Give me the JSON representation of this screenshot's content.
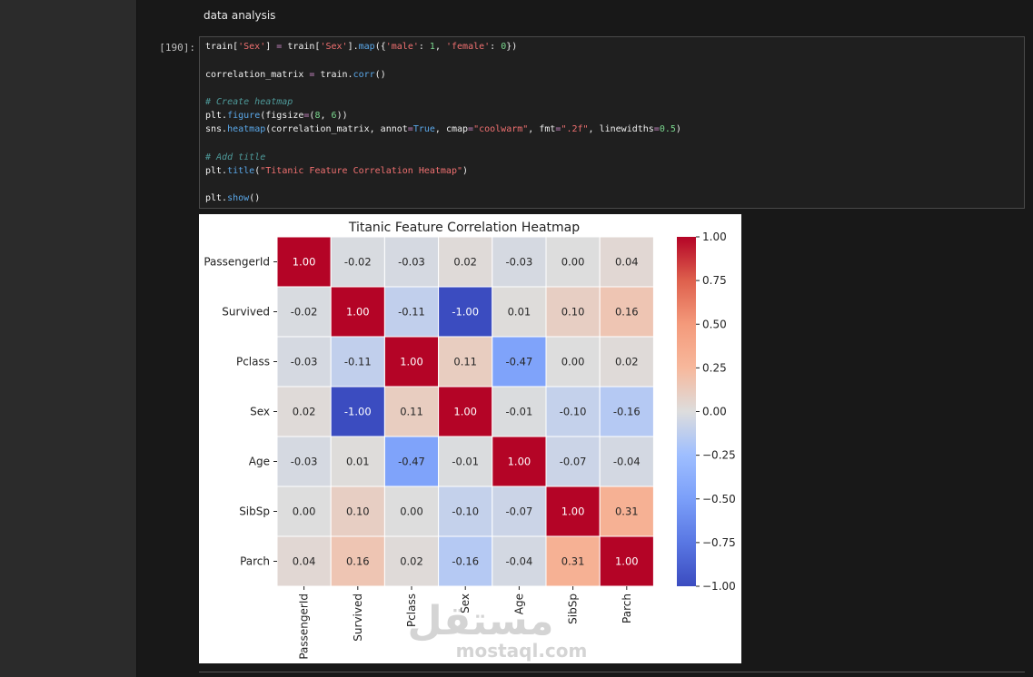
{
  "notebook": {
    "markdown_text": "data analysis",
    "cell_prompt": "[190]:",
    "code_lines": [
      [
        {
          "t": "train[",
          "c": ""
        },
        {
          "t": "'Sex'",
          "c": "str"
        },
        {
          "t": "] ",
          "c": ""
        },
        {
          "t": "=",
          "c": "op"
        },
        {
          "t": " train[",
          "c": ""
        },
        {
          "t": "'Sex'",
          "c": "str"
        },
        {
          "t": "].",
          "c": ""
        },
        {
          "t": "map",
          "c": "fn"
        },
        {
          "t": "({",
          "c": ""
        },
        {
          "t": "'male'",
          "c": "str"
        },
        {
          "t": ": ",
          "c": ""
        },
        {
          "t": "1",
          "c": "num"
        },
        {
          "t": ", ",
          "c": ""
        },
        {
          "t": "'female'",
          "c": "str"
        },
        {
          "t": ": ",
          "c": ""
        },
        {
          "t": "0",
          "c": "num"
        },
        {
          "t": "})",
          "c": ""
        }
      ],
      [],
      [
        {
          "t": "correlation_matrix ",
          "c": ""
        },
        {
          "t": "=",
          "c": "op"
        },
        {
          "t": " train.",
          "c": ""
        },
        {
          "t": "corr",
          "c": "fn"
        },
        {
          "t": "()",
          "c": ""
        }
      ],
      [],
      [
        {
          "t": "# Create heatmap",
          "c": "com"
        }
      ],
      [
        {
          "t": "plt.",
          "c": ""
        },
        {
          "t": "figure",
          "c": "fn"
        },
        {
          "t": "(figsize",
          "c": ""
        },
        {
          "t": "=",
          "c": "op"
        },
        {
          "t": "(",
          "c": ""
        },
        {
          "t": "8",
          "c": "num"
        },
        {
          "t": ", ",
          "c": ""
        },
        {
          "t": "6",
          "c": "num"
        },
        {
          "t": "))",
          "c": ""
        }
      ],
      [
        {
          "t": "sns.",
          "c": ""
        },
        {
          "t": "heatmap",
          "c": "fn"
        },
        {
          "t": "(correlation_matrix, annot",
          "c": ""
        },
        {
          "t": "=",
          "c": "op"
        },
        {
          "t": "True",
          "c": "kw"
        },
        {
          "t": ", cmap",
          "c": ""
        },
        {
          "t": "=",
          "c": "op"
        },
        {
          "t": "\"coolwarm\"",
          "c": "str"
        },
        {
          "t": ", fmt",
          "c": ""
        },
        {
          "t": "=",
          "c": "op"
        },
        {
          "t": "\".2f\"",
          "c": "str"
        },
        {
          "t": ", linewidths",
          "c": ""
        },
        {
          "t": "=",
          "c": "op"
        },
        {
          "t": "0.5",
          "c": "num"
        },
        {
          "t": ")",
          "c": ""
        }
      ],
      [],
      [
        {
          "t": "# Add title",
          "c": "com"
        }
      ],
      [
        {
          "t": "plt.",
          "c": ""
        },
        {
          "t": "title",
          "c": "fn"
        },
        {
          "t": "(",
          "c": ""
        },
        {
          "t": "\"Titanic Feature Correlation Heatmap\"",
          "c": "str"
        },
        {
          "t": ")",
          "c": ""
        }
      ],
      [],
      [
        {
          "t": "plt.",
          "c": ""
        },
        {
          "t": "show",
          "c": "fn"
        },
        {
          "t": "()",
          "c": ""
        }
      ]
    ],
    "watermark": {
      "arabic": "مستقل",
      "latin": "mostaql.com"
    }
  },
  "chart_data": {
    "type": "heatmap",
    "title": "Titanic Feature Correlation Heatmap",
    "labels": [
      "PassengerId",
      "Survived",
      "Pclass",
      "Sex",
      "Age",
      "SibSp",
      "Parch"
    ],
    "matrix": [
      [
        1.0,
        -0.02,
        -0.03,
        0.02,
        -0.03,
        0.0,
        0.04
      ],
      [
        -0.02,
        1.0,
        -0.11,
        -1.0,
        0.01,
        0.1,
        0.16
      ],
      [
        -0.03,
        -0.11,
        1.0,
        0.11,
        -0.47,
        0.0,
        0.02
      ],
      [
        0.02,
        -1.0,
        0.11,
        1.0,
        -0.01,
        -0.1,
        -0.16
      ],
      [
        -0.03,
        0.01,
        -0.47,
        -0.01,
        1.0,
        -0.07,
        -0.04
      ],
      [
        0.0,
        0.1,
        0.0,
        -0.1,
        -0.07,
        1.0,
        0.31
      ],
      [
        0.04,
        0.16,
        0.02,
        -0.16,
        -0.04,
        0.31,
        1.0
      ]
    ],
    "cmap": "coolwarm",
    "vmin": -1.0,
    "vmax": 1.0,
    "colorbar_ticks": [
      "1.00",
      "0.75",
      "0.50",
      "0.25",
      "0.00",
      "−0.25",
      "−0.50",
      "−0.75",
      "−1.00"
    ],
    "colorbar_tick_values": [
      1.0,
      0.75,
      0.5,
      0.25,
      0.0,
      -0.25,
      -0.5,
      -0.75,
      -1.0
    ]
  }
}
